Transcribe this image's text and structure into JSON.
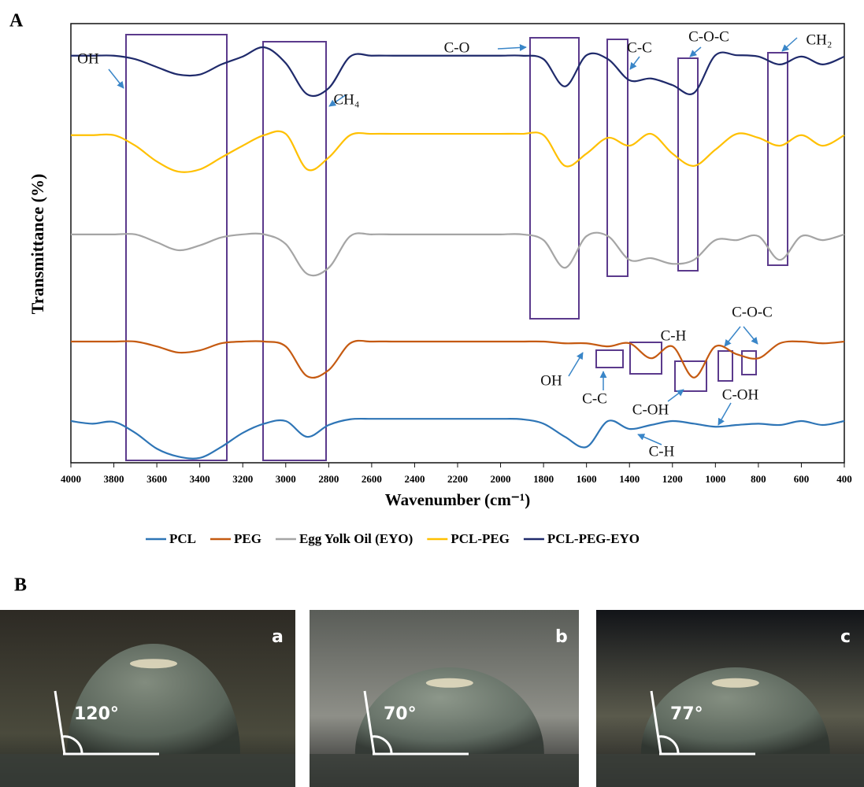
{
  "chart_data": {
    "type": "line",
    "panel_label": "A",
    "xlabel": "Wavenumber (cm⁻¹)",
    "ylabel": "Transmittance (%)",
    "xlim": [
      4000,
      400
    ],
    "ylim": [
      0,
      100
    ],
    "xticks": [
      4000,
      3800,
      3600,
      3400,
      3200,
      3000,
      2800,
      2600,
      2400,
      2200,
      2000,
      1800,
      1600,
      1400,
      1200,
      1000,
      800,
      600,
      400
    ],
    "grid": false,
    "x": [
      4000,
      3900,
      3800,
      3700,
      3600,
      3500,
      3400,
      3300,
      3200,
      3100,
      3000,
      2900,
      2800,
      2700,
      2600,
      2500,
      2400,
      2300,
      2200,
      2100,
      2000,
      1900,
      1800,
      1700,
      1600,
      1500,
      1400,
      1300,
      1200,
      1100,
      1000,
      900,
      800,
      700,
      600,
      500,
      400
    ],
    "series": [
      {
        "name": "PCL",
        "color": "#2e75b6",
        "values": [
          9.5,
          8.9,
          9.3,
          6.8,
          3.2,
          1.4,
          1.1,
          3.6,
          6.8,
          8.9,
          9.5,
          5.9,
          8.6,
          9.9,
          10.0,
          10.0,
          10.0,
          10.0,
          10.0,
          10.0,
          10.0,
          9.9,
          8.9,
          5.9,
          3.6,
          9.5,
          7.7,
          8.6,
          9.5,
          8.9,
          8.2,
          8.6,
          8.9,
          8.6,
          9.5,
          8.6,
          9.5
        ]
      },
      {
        "name": "PEG",
        "color": "#c55a11",
        "values": [
          27.6,
          27.6,
          27.6,
          27.6,
          26.5,
          25.1,
          25.6,
          27.2,
          27.6,
          27.6,
          26.5,
          19.7,
          21.1,
          27.2,
          27.6,
          27.6,
          27.6,
          27.6,
          27.6,
          27.6,
          27.6,
          27.6,
          27.6,
          27.2,
          27.2,
          26.5,
          27.2,
          23.8,
          26.5,
          19.4,
          26.5,
          24.7,
          23.8,
          27.2,
          27.6,
          27.2,
          27.6
        ]
      },
      {
        "name": "Egg Yolk Oil (EYO)",
        "color": "#a5a5a5",
        "values": [
          52.0,
          52.0,
          52.0,
          52.0,
          50.2,
          48.4,
          49.5,
          51.3,
          52.0,
          52.0,
          49.8,
          43.0,
          44.4,
          51.6,
          52.0,
          52.0,
          52.0,
          52.0,
          52.0,
          52.0,
          52.0,
          52.0,
          50.7,
          44.4,
          51.6,
          51.6,
          46.2,
          46.6,
          45.3,
          46.2,
          50.7,
          50.7,
          51.6,
          46.2,
          51.6,
          50.7,
          52.0
        ]
      },
      {
        "name": "PCL-PEG",
        "color": "#ffc000",
        "values": [
          74.6,
          74.6,
          74.6,
          72.2,
          68.6,
          66.3,
          66.8,
          69.5,
          72.2,
          74.6,
          74.9,
          66.8,
          69.5,
          74.6,
          74.9,
          74.9,
          74.9,
          74.9,
          74.9,
          74.9,
          74.9,
          74.9,
          74.6,
          67.6,
          70.4,
          74.0,
          72.2,
          74.9,
          70.4,
          67.6,
          71.3,
          74.9,
          74.0,
          72.2,
          74.6,
          72.2,
          74.6
        ]
      },
      {
        "name": "PCL-PEG-EYO",
        "color": "#1f2a6b",
        "values": [
          92.7,
          92.7,
          92.7,
          91.9,
          90.1,
          88.4,
          88.4,
          90.7,
          92.5,
          94.6,
          91.0,
          83.9,
          85.3,
          92.5,
          92.7,
          92.7,
          92.7,
          92.7,
          92.7,
          92.7,
          92.7,
          92.7,
          91.9,
          85.7,
          92.8,
          91.9,
          87.1,
          87.5,
          86.0,
          84.2,
          92.8,
          92.8,
          92.5,
          90.7,
          92.5,
          90.7,
          92.5
        ]
      }
    ],
    "annotations": [
      "OH",
      "CH₄",
      "C-O",
      "C-C",
      "C-O-C",
      "CH₂",
      "C-H",
      "OH",
      "C-C",
      "C-OH",
      "C-OH",
      "C-O-C",
      "C-H"
    ]
  },
  "panel_b": {
    "panel_label": "B",
    "photos": [
      {
        "label": "a",
        "angle": "120°"
      },
      {
        "label": "b",
        "angle": "70°"
      },
      {
        "label": "c",
        "angle": "77°"
      }
    ]
  }
}
